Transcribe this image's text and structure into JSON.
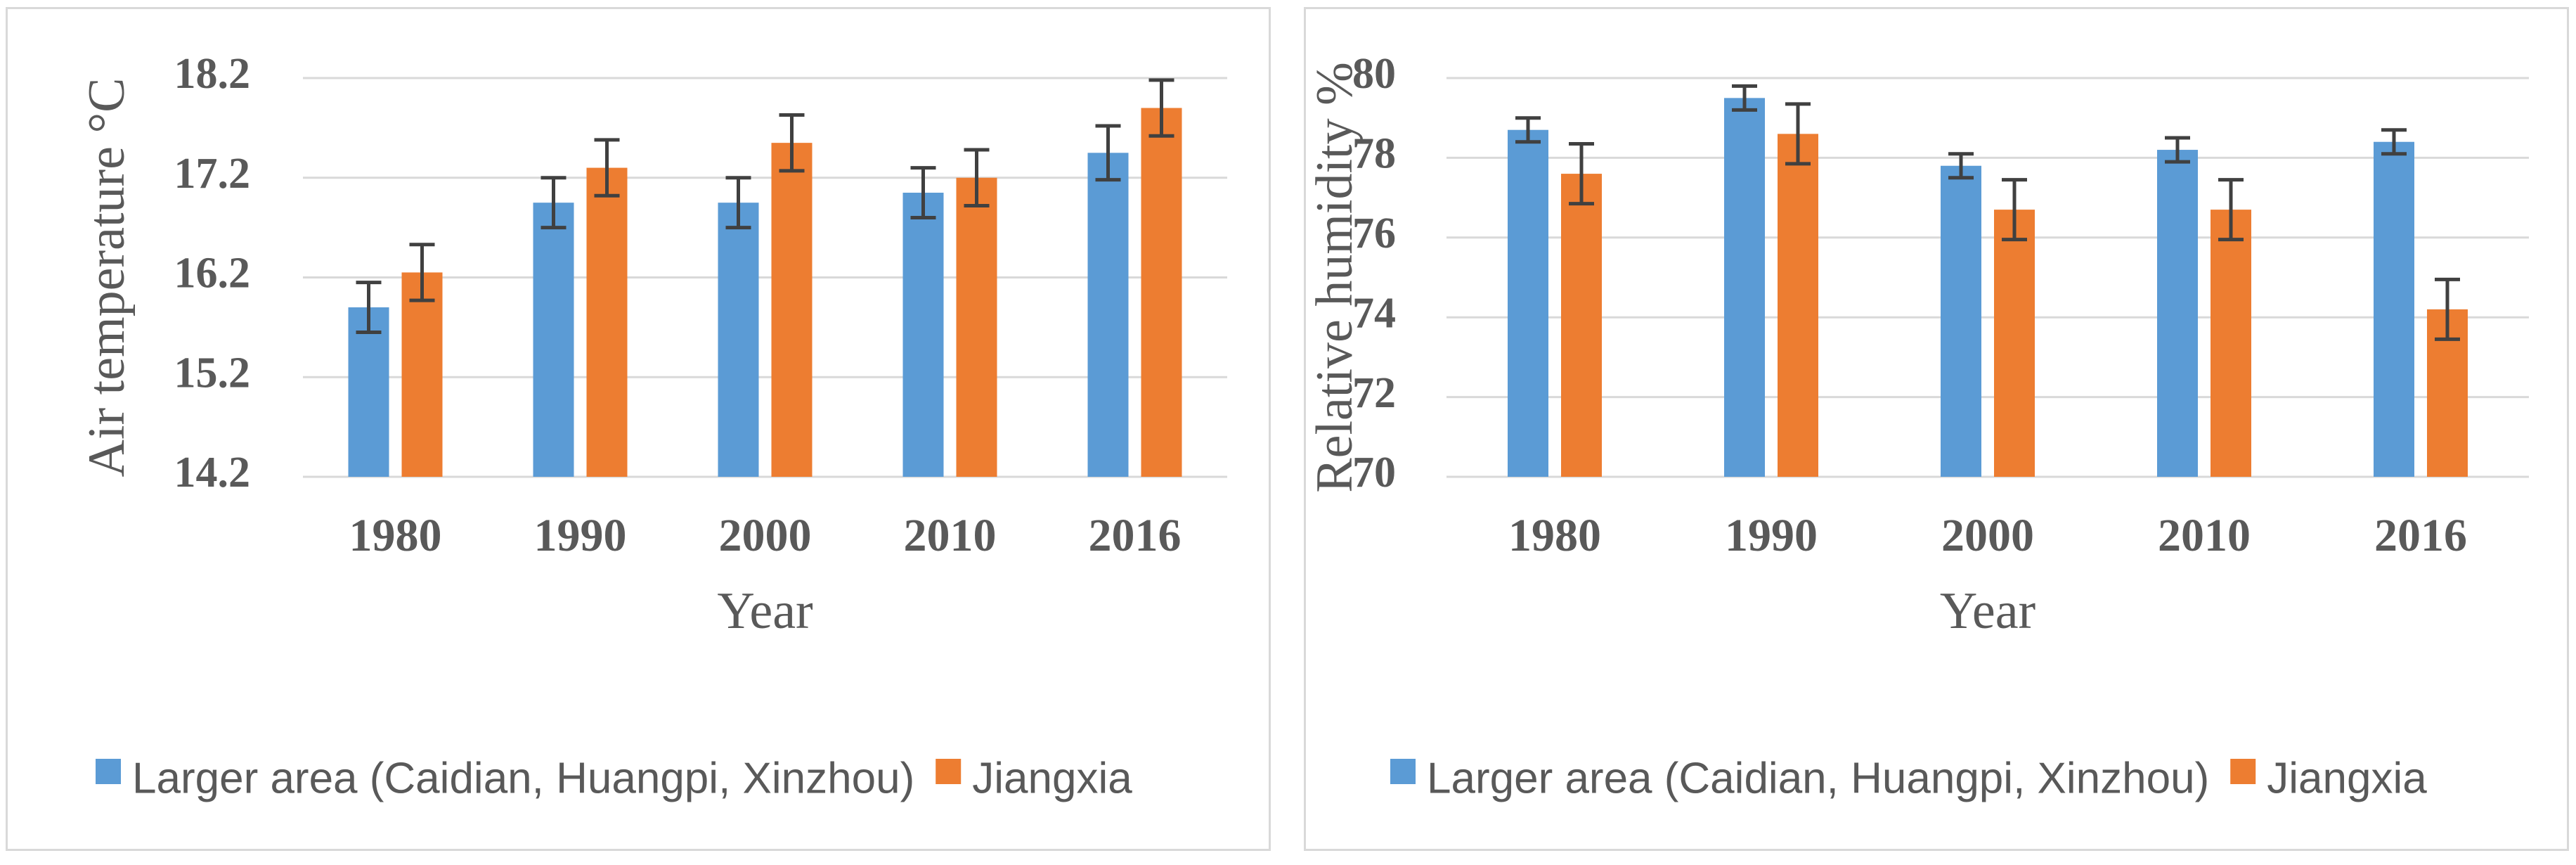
{
  "chart_data": [
    {
      "type": "bar",
      "title": "",
      "categories": [
        "1980",
        "1990",
        "2000",
        "2010",
        "2016"
      ],
      "xlabel": "Year",
      "ylabel": "Air temperature °C",
      "ylim": [
        14.2,
        18.2
      ],
      "yticks": [
        "14.2",
        "15.2",
        "16.2",
        "17.2",
        "18.2"
      ],
      "grid": true,
      "legend_position": "bottom",
      "series": [
        {
          "name": "Larger area (Caidian, Huangpi, Xinzhou)",
          "color": "#5b9bd5",
          "values": [
            15.9,
            16.95,
            16.95,
            17.05,
            17.45
          ],
          "errors": [
            0.25,
            0.25,
            0.25,
            0.25,
            0.27
          ]
        },
        {
          "name": "Jiangxia",
          "color": "#ed7d31",
          "values": [
            16.25,
            17.3,
            17.55,
            17.2,
            17.9
          ],
          "errors": [
            0.28,
            0.28,
            0.28,
            0.28,
            0.28
          ]
        }
      ]
    },
    {
      "type": "bar",
      "title": "",
      "categories": [
        "1980",
        "1990",
        "2000",
        "2010",
        "2016"
      ],
      "xlabel": "Year",
      "ylabel": "Relative humidity %",
      "ylim": [
        70,
        80
      ],
      "yticks": [
        "70",
        "72",
        "74",
        "76",
        "78",
        "80"
      ],
      "grid": true,
      "legend_position": "bottom",
      "series": [
        {
          "name": "Larger area (Caidian, Huangpi, Xinzhou)",
          "color": "#5b9bd5",
          "values": [
            78.7,
            79.5,
            77.8,
            78.2,
            78.4
          ],
          "errors": [
            0.3,
            0.3,
            0.3,
            0.3,
            0.3
          ]
        },
        {
          "name": "Jiangxia",
          "color": "#ed7d31",
          "values": [
            77.6,
            78.6,
            76.7,
            76.7,
            74.2
          ],
          "errors": [
            0.75,
            0.75,
            0.75,
            0.75,
            0.75
          ]
        }
      ]
    }
  ]
}
